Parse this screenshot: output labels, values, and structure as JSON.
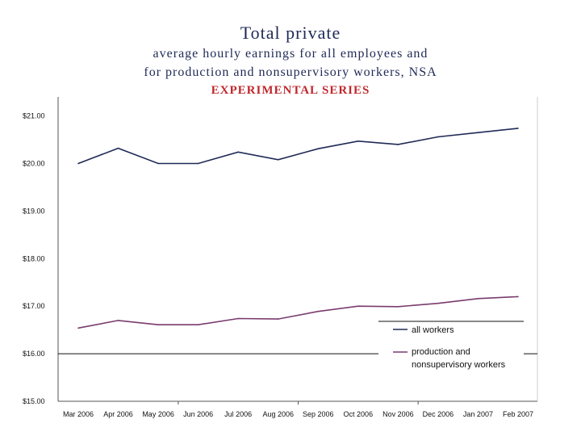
{
  "chart_data": {
    "type": "line",
    "title": "Total private",
    "subtitle_line1": "average hourly earnings for all employees and",
    "subtitle_line2": "for production and nonsupervisory workers, NSA",
    "annotation": "EXPERIMENTAL SERIES",
    "categories": [
      "Mar 2006",
      "Apr 2006",
      "May 2006",
      "Jun 2006",
      "Jul 2006",
      "Aug 2006",
      "Sep 2006",
      "Oct 2006",
      "Nov 2006",
      "Dec 2006",
      "Jan 2007",
      "Feb 2007"
    ],
    "series": [
      {
        "name": "all workers",
        "color": "#1f2a56",
        "values": [
          20.0,
          20.32,
          20.0,
          20.0,
          20.24,
          20.08,
          20.31,
          20.47,
          20.4,
          20.56,
          20.65,
          20.74
        ]
      },
      {
        "name": "production and nonsupervisory workers",
        "name_line1": "production and",
        "name_line2": "nonsupervisory workers",
        "color": "#7a3b6e",
        "values": [
          16.54,
          16.7,
          16.61,
          16.61,
          16.74,
          16.73,
          16.89,
          17.0,
          16.99,
          17.06,
          17.16,
          17.2
        ]
      }
    ],
    "yticks": [
      "$15.00",
      "$16.00",
      "$17.00",
      "$18.00",
      "$19.00",
      "$20.00",
      "$21.00"
    ],
    "ylim": [
      15,
      21.4
    ],
    "xlabel": "",
    "ylabel": "",
    "grid": false,
    "legend_position": "right"
  }
}
